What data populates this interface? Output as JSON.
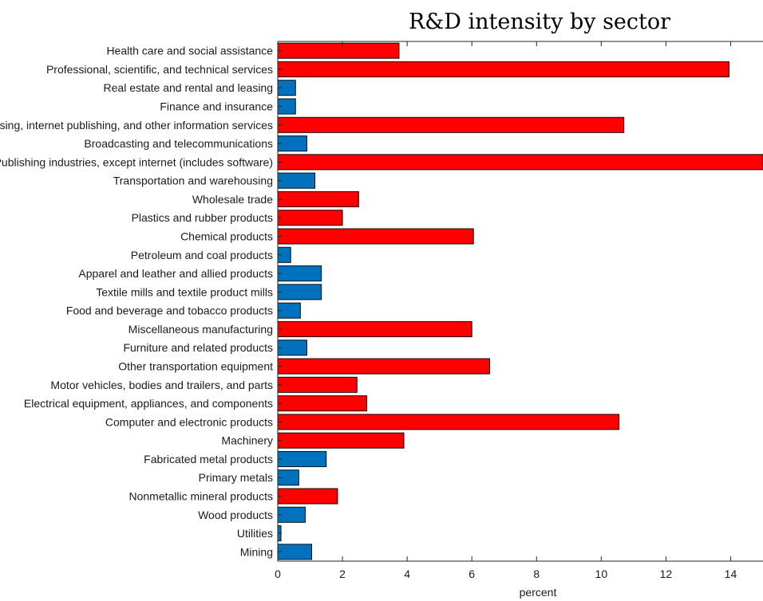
{
  "chart_data": {
    "type": "bar",
    "orientation": "horizontal",
    "title": "R&D intensity by sector",
    "xlabel": "percent",
    "ylabel": "",
    "xlim": [
      0,
      15
    ],
    "xticks": [
      "0",
      "2",
      "4",
      "6",
      "8",
      "10",
      "12",
      "14"
    ],
    "grid": false,
    "legend": "none",
    "colors": {
      "high": "#ff0000",
      "low": "#0072bd",
      "edge": "#000000"
    },
    "categories": [
      "Health care and social assistance",
      "Professional, scientific, and technical services",
      "Real estate and rental and leasing",
      "Finance and insurance",
      "Data processing, internet publishing, and other information services",
      "Broadcasting and telecommunications",
      "Publishing industries, except internet (includes software)",
      "Transportation and warehousing",
      "Wholesale trade",
      "Plastics and rubber products",
      "Chemical products",
      "Petroleum and coal products",
      "Apparel and leather and allied products",
      "Textile mills and textile product mills",
      "Food and beverage and tobacco products",
      "Miscellaneous manufacturing",
      "Furniture and related products",
      "Other transportation equipment",
      "Motor vehicles, bodies and trailers, and parts",
      "Electrical equipment, appliances, and components",
      "Computer and electronic products",
      "Machinery",
      "Fabricated metal products",
      "Primary metals",
      "Nonmetallic mineral products",
      "Wood products",
      "Utilities",
      "Mining"
    ],
    "values": [
      3.75,
      13.95,
      0.55,
      0.55,
      10.7,
      0.9,
      15.0,
      1.15,
      2.5,
      2.0,
      6.05,
      0.4,
      1.35,
      1.35,
      0.7,
      6.0,
      0.9,
      6.55,
      2.45,
      2.75,
      10.55,
      3.9,
      1.5,
      0.65,
      1.85,
      0.85,
      0.1,
      1.05
    ],
    "groups": [
      "high",
      "high",
      "low",
      "low",
      "high",
      "low",
      "high",
      "low",
      "high",
      "high",
      "high",
      "low",
      "low",
      "low",
      "low",
      "high",
      "low",
      "high",
      "high",
      "high",
      "high",
      "high",
      "low",
      "low",
      "high",
      "low",
      "low",
      "low"
    ]
  }
}
